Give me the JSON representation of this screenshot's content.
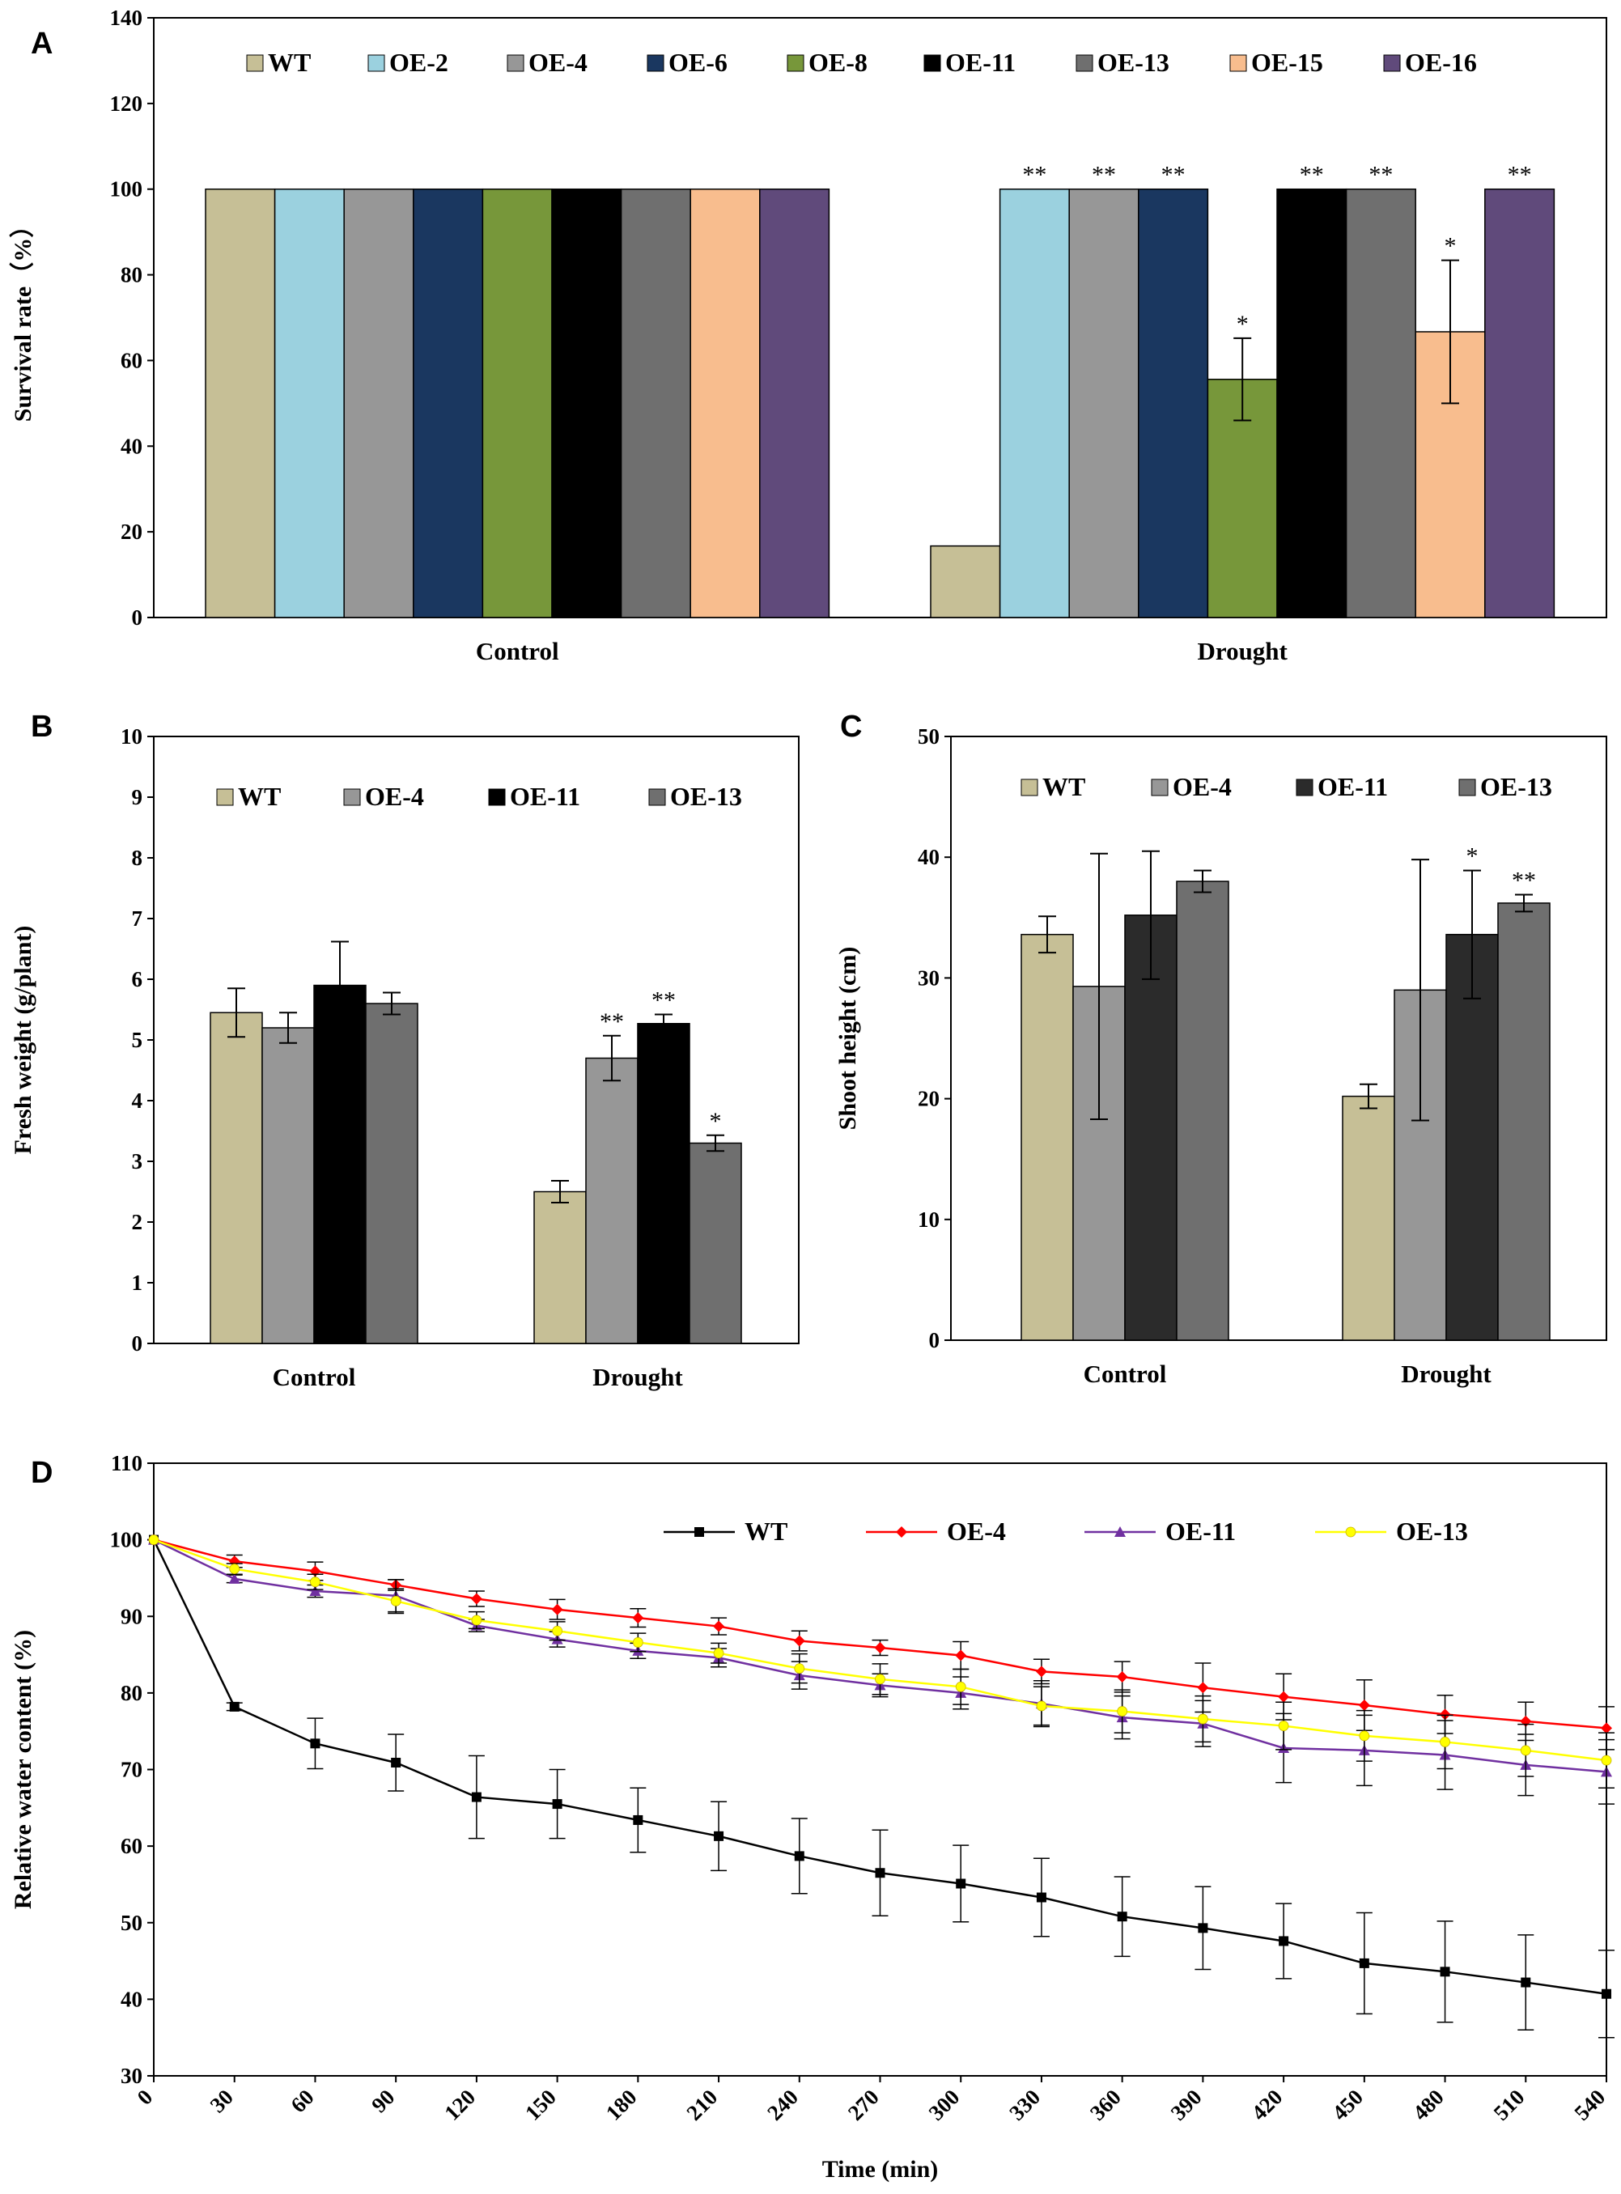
{
  "chart_data": [
    {
      "panel": "A",
      "type": "bar",
      "title": "",
      "ylabel": "Survival rate（%）",
      "xlabel": "",
      "ylim": [
        0,
        140
      ],
      "yticks": [
        "0",
        "20",
        "40",
        "60",
        "80",
        "100",
        "120",
        "140"
      ],
      "categories": [
        "Control",
        "Drought"
      ],
      "series": [
        {
          "name": "WT",
          "color": "#c6bf96",
          "values": [
            100,
            16.7
          ],
          "errors": [
            0,
            0
          ],
          "sig": [
            "",
            ""
          ]
        },
        {
          "name": "OE-2",
          "color": "#9bd1df",
          "values": [
            100,
            100
          ],
          "errors": [
            0,
            0
          ],
          "sig": [
            "",
            "**"
          ]
        },
        {
          "name": "OE-4",
          "color": "#979797",
          "values": [
            100,
            100
          ],
          "errors": [
            0,
            0
          ],
          "sig": [
            "",
            "**"
          ]
        },
        {
          "name": "OE-6",
          "color": "#1a3760",
          "values": [
            100,
            100
          ],
          "errors": [
            0,
            0
          ],
          "sig": [
            "",
            "**"
          ]
        },
        {
          "name": "OE-8",
          "color": "#77973a",
          "values": [
            100,
            55.6
          ],
          "errors": [
            0,
            9.6
          ],
          "sig": [
            "",
            "*"
          ]
        },
        {
          "name": "OE-11",
          "color": "#000000",
          "values": [
            100,
            100
          ],
          "errors": [
            0,
            0
          ],
          "sig": [
            "",
            "**"
          ]
        },
        {
          "name": "OE-13",
          "color": "#6f6f6f",
          "values": [
            100,
            100
          ],
          "errors": [
            0,
            0
          ],
          "sig": [
            "",
            "**"
          ]
        },
        {
          "name": "OE-15",
          "color": "#f8bd8e",
          "values": [
            100,
            66.7
          ],
          "errors": [
            0,
            16.7
          ],
          "sig": [
            "",
            "*"
          ]
        },
        {
          "name": "OE-16",
          "color": "#604a7b",
          "values": [
            100,
            100
          ],
          "errors": [
            0,
            0
          ],
          "sig": [
            "",
            "**"
          ]
        }
      ],
      "legend": "top"
    },
    {
      "panel": "B",
      "type": "bar",
      "title": "",
      "ylabel": "Fresh weight (g/plant)",
      "xlabel": "",
      "ylim": [
        0,
        10
      ],
      "yticks": [
        "0",
        "1",
        "2",
        "3",
        "4",
        "5",
        "6",
        "7",
        "8",
        "9",
        "10"
      ],
      "categories": [
        "Control",
        "Drought"
      ],
      "series": [
        {
          "name": "WT",
          "color": "#c6bf96",
          "values": [
            5.45,
            2.5
          ],
          "errors": [
            0.4,
            0.18
          ],
          "sig": [
            "",
            ""
          ]
        },
        {
          "name": "OE-4",
          "color": "#979797",
          "values": [
            5.2,
            4.7
          ],
          "errors": [
            0.25,
            0.37
          ],
          "sig": [
            "",
            "**"
          ]
        },
        {
          "name": "OE-11",
          "color": "#000000",
          "values": [
            5.9,
            5.27
          ],
          "errors": [
            0.72,
            0.15
          ],
          "sig": [
            "",
            "**"
          ]
        },
        {
          "name": "OE-13",
          "color": "#6f6f6f",
          "values": [
            5.6,
            3.3
          ],
          "errors": [
            0.18,
            0.13
          ],
          "sig": [
            "",
            "*"
          ]
        }
      ],
      "legend": "top"
    },
    {
      "panel": "C",
      "type": "bar",
      "title": "",
      "ylabel": "Shoot height (cm)",
      "xlabel": "",
      "ylim": [
        0,
        50
      ],
      "yticks": [
        "0",
        "10",
        "20",
        "30",
        "40",
        "50"
      ],
      "categories": [
        "Control",
        "Drought"
      ],
      "series": [
        {
          "name": "WT",
          "color": "#c6bf96",
          "values": [
            33.6,
            20.2
          ],
          "errors": [
            1.5,
            1.0
          ],
          "sig": [
            "",
            ""
          ]
        },
        {
          "name": "OE-4",
          "color": "#979797",
          "values": [
            29.3,
            29.0
          ],
          "errors": [
            11.0,
            10.8
          ],
          "sig": [
            "",
            ""
          ]
        },
        {
          "name": "OE-11",
          "color": "#2b2b2b",
          "values": [
            35.2,
            33.6
          ],
          "errors": [
            5.3,
            5.3
          ],
          "sig": [
            "",
            "*"
          ]
        },
        {
          "name": "OE-13",
          "color": "#6f6f6f",
          "values": [
            38.0,
            36.2
          ],
          "errors": [
            0.9,
            0.7
          ],
          "sig": [
            "",
            "**"
          ]
        }
      ],
      "legend": "top"
    },
    {
      "panel": "D",
      "type": "line",
      "title": "",
      "ylabel": "Relative water content (%)",
      "xlabel": "Time (min)",
      "ylim": [
        30,
        110
      ],
      "yticks": [
        "30",
        "40",
        "50",
        "60",
        "70",
        "80",
        "90",
        "100",
        "110"
      ],
      "xlim": [
        0,
        540
      ],
      "x": [
        0,
        30,
        60,
        90,
        120,
        150,
        180,
        210,
        240,
        270,
        300,
        330,
        360,
        390,
        420,
        450,
        480,
        510,
        540
      ],
      "series": [
        {
          "name": "WT",
          "color": "#000000",
          "marker": "square",
          "values": [
            100,
            78.2,
            73.4,
            70.9,
            66.4,
            65.5,
            63.4,
            61.3,
            58.7,
            56.5,
            55.1,
            53.3,
            50.8,
            49.3,
            47.6,
            44.7,
            43.6,
            42.2,
            40.7
          ],
          "errors": [
            0,
            0.5,
            3.3,
            3.7,
            5.4,
            4.5,
            4.2,
            4.5,
            4.9,
            5.6,
            5.0,
            5.1,
            5.2,
            5.4,
            4.9,
            6.6,
            6.6,
            6.2,
            5.7
          ]
        },
        {
          "name": "OE-4",
          "color": "#ff0000",
          "marker": "diamond",
          "values": [
            100,
            97.2,
            95.9,
            94.1,
            92.3,
            90.9,
            89.8,
            88.7,
            86.8,
            85.9,
            84.9,
            82.8,
            82.1,
            80.7,
            79.5,
            78.4,
            77.2,
            76.3,
            75.4
          ],
          "errors": [
            0,
            0.8,
            1.2,
            0.7,
            1.0,
            1.3,
            1.2,
            1.1,
            1.3,
            1.0,
            1.8,
            1.6,
            2.0,
            3.2,
            3.0,
            3.3,
            2.5,
            2.5,
            2.8
          ]
        },
        {
          "name": "OE-11",
          "color": "#7030a0",
          "marker": "triangle",
          "values": [
            100,
            94.9,
            93.3,
            92.7,
            88.8,
            87.0,
            85.5,
            84.6,
            82.3,
            81.0,
            80.0,
            78.6,
            76.8,
            76.0,
            72.8,
            72.5,
            71.9,
            70.6,
            69.7
          ],
          "errors": [
            0,
            0.5,
            0.8,
            2.1,
            0.8,
            1.0,
            1.0,
            1.2,
            1.8,
            1.5,
            2.1,
            3.0,
            2.8,
            3.0,
            4.5,
            4.6,
            4.5,
            4.0,
            4.2
          ]
        },
        {
          "name": "OE-13",
          "color": "#ffff00",
          "marker": "circle",
          "values": [
            100,
            96.2,
            94.5,
            92.0,
            89.5,
            88.1,
            86.6,
            85.2,
            83.2,
            81.8,
            80.8,
            78.3,
            77.6,
            76.6,
            75.7,
            74.4,
            73.6,
            72.5,
            71.2
          ],
          "errors": [
            0,
            0.7,
            1.0,
            1.6,
            1.1,
            1.2,
            1.2,
            1.3,
            1.9,
            2.0,
            2.3,
            2.5,
            2.8,
            3.0,
            3.1,
            3.3,
            3.5,
            3.4,
            3.6
          ]
        }
      ],
      "legend": "top-right"
    }
  ]
}
